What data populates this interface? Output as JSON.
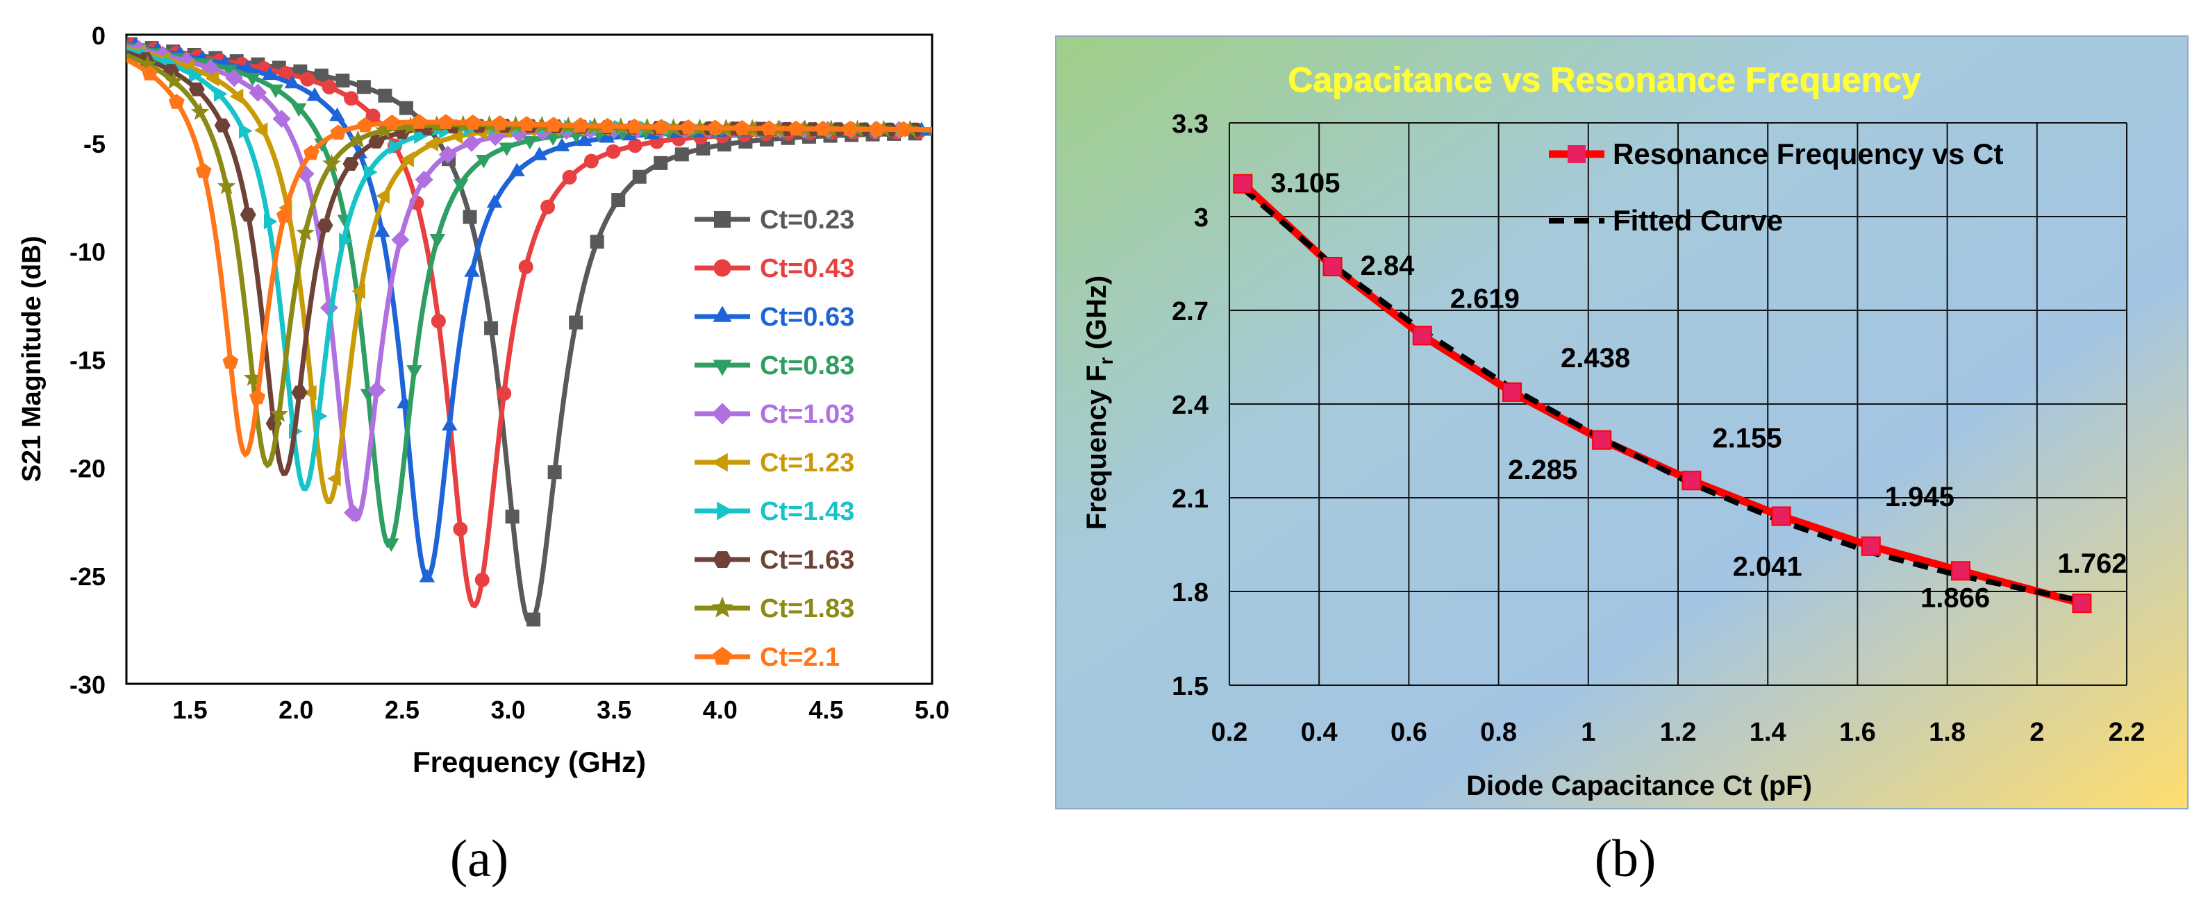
{
  "chart_data": [
    {
      "type": "line",
      "panel_caption": "(a)",
      "title": "",
      "xlabel": "Frequency (GHz)",
      "ylabel": "S21 Magnitude (dB)",
      "xlim": [
        1.2,
        5.0
      ],
      "ylim": [
        -30,
        0
      ],
      "xticks": [
        1.5,
        2.0,
        2.5,
        3.0,
        3.5,
        4.0,
        4.5,
        5.0
      ],
      "xtick_labels": [
        "1.5",
        "2.0",
        "2.5",
        "3.0",
        "3.5",
        "4.0",
        "4.5",
        "5.0"
      ],
      "yticks": [
        0,
        -5,
        -10,
        -15,
        -20,
        -25,
        -30
      ],
      "ytick_labels": [
        "0",
        "-5",
        "-10",
        "-15",
        "-20",
        "-25",
        "-30"
      ],
      "grid": false,
      "legend_position": "right",
      "series": [
        {
          "name": "Ct=0.23",
          "color": "#595959",
          "marker": "square",
          "f0": 3.105,
          "depth": -27.2,
          "bw": 0.175
        },
        {
          "name": "Ct=0.43",
          "color": "#e84040",
          "marker": "circle",
          "f0": 2.84,
          "depth": -26.4,
          "bw": 0.16
        },
        {
          "name": "Ct=0.63",
          "color": "#1c64d8",
          "marker": "triangle-up",
          "f0": 2.619,
          "depth": -25.1,
          "bw": 0.15
        },
        {
          "name": "Ct=0.83",
          "color": "#2e9e62",
          "marker": "triangle-down",
          "f0": 2.438,
          "depth": -23.6,
          "bw": 0.145
        },
        {
          "name": "Ct=1.03",
          "color": "#b070e0",
          "marker": "diamond",
          "f0": 2.285,
          "depth": -22.4,
          "bw": 0.14
        },
        {
          "name": "Ct=1.23",
          "color": "#c99a06",
          "marker": "triangle-left",
          "f0": 2.155,
          "depth": -21.6,
          "bw": 0.14
        },
        {
          "name": "Ct=1.43",
          "color": "#16c3c8",
          "marker": "triangle-right",
          "f0": 2.041,
          "depth": -21.0,
          "bw": 0.135
        },
        {
          "name": "Ct=1.63",
          "color": "#6e4237",
          "marker": "hexagon",
          "f0": 1.945,
          "depth": -20.3,
          "bw": 0.135
        },
        {
          "name": "Ct=1.83",
          "color": "#8a8a14",
          "marker": "star",
          "f0": 1.866,
          "depth": -19.9,
          "bw": 0.135
        },
        {
          "name": "Ct=2.1",
          "color": "#ff7518",
          "marker": "pentagon",
          "f0": 1.762,
          "depth": -19.4,
          "bw": 0.13
        }
      ]
    },
    {
      "type": "line",
      "panel_caption": "(b)",
      "title": "Capacitance vs Resonance Frequency",
      "xlabel": "Diode Capacitance Ct (pF)",
      "ylabel": "Frequency F",
      "ylabel_subscript": "r",
      "ylabel_unit": " (GHz)",
      "xlim": [
        0.2,
        2.2
      ],
      "ylim": [
        1.5,
        3.3
      ],
      "xticks": [
        0.2,
        0.4,
        0.6,
        0.8,
        1.0,
        1.2,
        1.4,
        1.6,
        1.8,
        2.0,
        2.2
      ],
      "xtick_labels": [
        "0.2",
        "0.4",
        "0.6",
        "0.8",
        "1",
        "1.2",
        "1.4",
        "1.6",
        "1.8",
        "2",
        "2.2"
      ],
      "yticks": [
        1.5,
        1.8,
        2.1,
        2.4,
        2.7,
        3.0,
        3.3
      ],
      "ytick_labels": [
        "1.5",
        "1.8",
        "2.1",
        "2.4",
        "2.7",
        "3",
        "3.3"
      ],
      "grid": true,
      "legend_position": "top-right",
      "colors": {
        "title": "#ffff33",
        "series": "#ff0000",
        "marker": "#e82060",
        "fit": "#000000"
      },
      "series": [
        {
          "name": "Resonance Frequency vs Ct",
          "x": [
            0.23,
            0.43,
            0.63,
            0.83,
            1.03,
            1.23,
            1.43,
            1.63,
            1.83,
            2.1
          ],
          "y": [
            3.105,
            2.84,
            2.619,
            2.438,
            2.285,
            2.155,
            2.041,
            1.945,
            1.866,
            1.762
          ]
        },
        {
          "name": "Fitted Curve",
          "x": [
            0.23,
            0.43,
            0.63,
            0.83,
            1.03,
            1.23,
            1.43,
            1.63,
            1.83,
            2.1
          ],
          "y": [
            3.09,
            2.845,
            2.635,
            2.45,
            2.29,
            2.145,
            2.025,
            1.925,
            1.85,
            1.77
          ]
        }
      ],
      "data_labels": [
        "3.105",
        "2.84",
        "2.619",
        "2.438",
        "2.285",
        "2.155",
        "2.041",
        "1.945",
        "1.866",
        "1.762"
      ]
    }
  ]
}
